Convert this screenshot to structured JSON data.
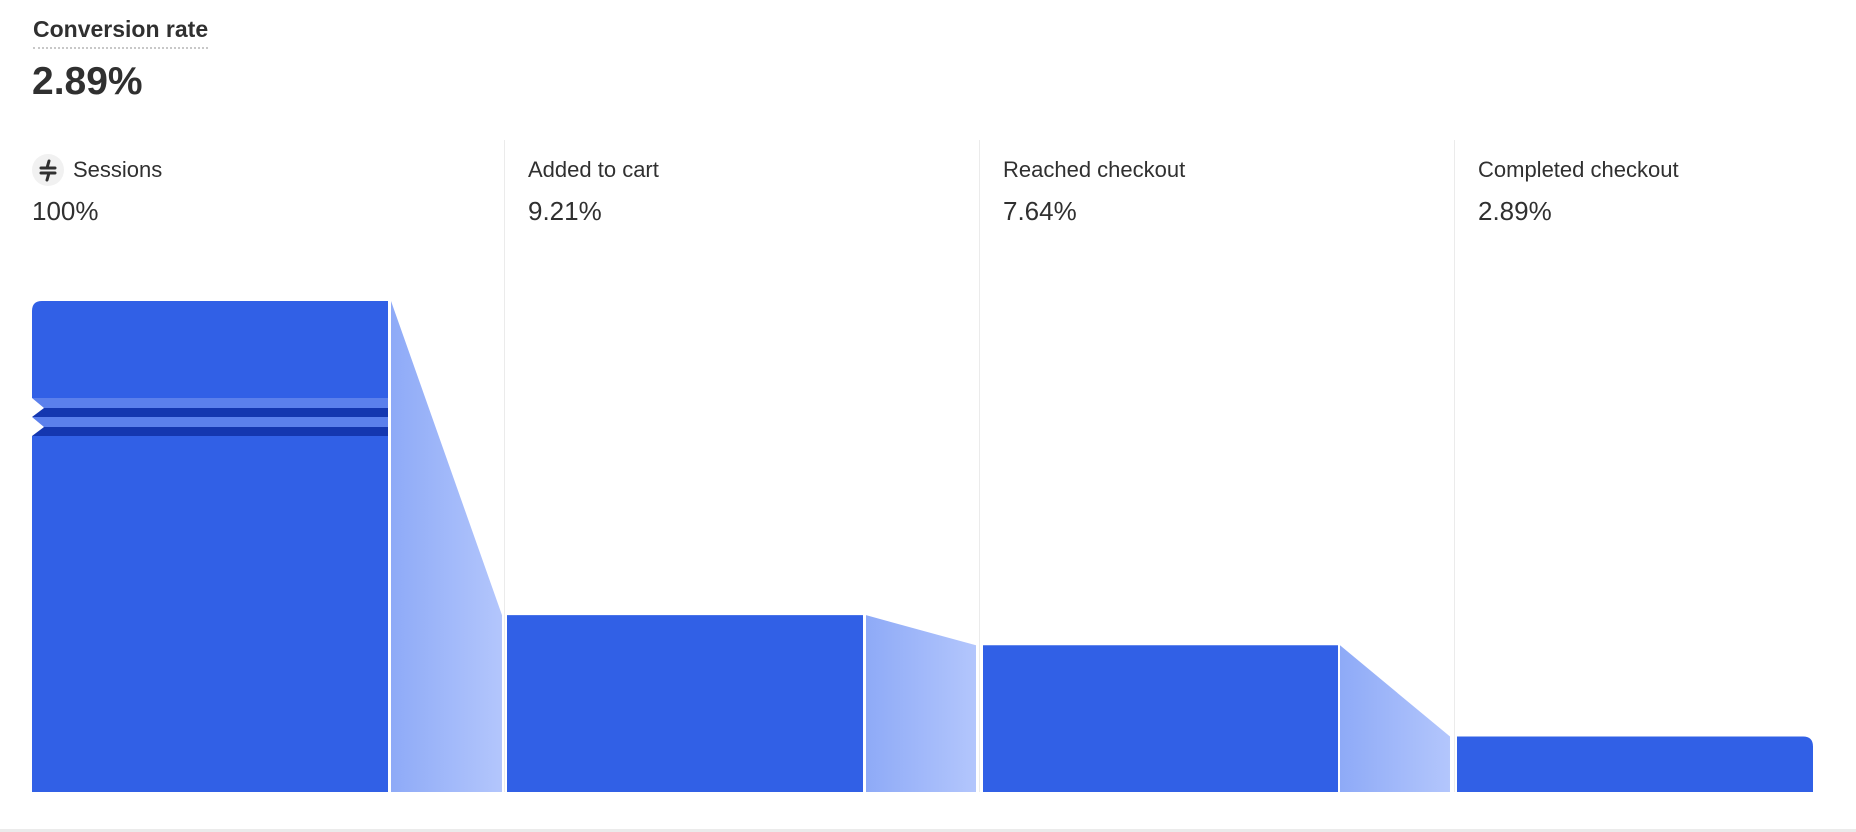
{
  "header": {
    "title": "Conversion rate",
    "value": "2.89%"
  },
  "chart_data": {
    "type": "bar",
    "subtype": "funnel",
    "categories": [
      "Sessions",
      "Added to cart",
      "Reached checkout",
      "Completed checkout"
    ],
    "values": [
      100,
      9.21,
      7.64,
      2.89
    ],
    "value_labels": [
      "100%",
      "9.21%",
      "7.64%",
      "2.89%"
    ],
    "unit": "%",
    "axis_break_on_first_bar": true,
    "grid": false,
    "colors": {
      "bar": "#3160e6",
      "connector_start": "#8eaaf7",
      "connector_end": "#b3c6fc",
      "break_light": "#5b80ec",
      "break_dark": "#1437b0"
    }
  }
}
